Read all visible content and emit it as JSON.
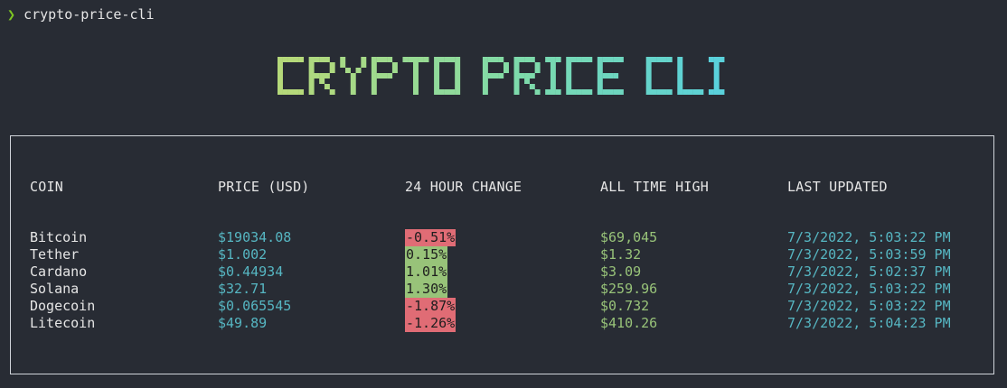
{
  "terminal": {
    "prompt_symbol": "❯",
    "command": "crypto-price-cli"
  },
  "banner": {
    "text": "CRYPTO PRICE CLI",
    "gradient": [
      "#b5d97a",
      "#7fdba8",
      "#56d0e0"
    ]
  },
  "table": {
    "headers": {
      "coin": "COIN",
      "price": "PRICE (USD)",
      "change": "24 HOUR CHANGE",
      "ath": "ALL TIME HIGH",
      "updated": "LAST UPDATED"
    },
    "rows": [
      {
        "coin": "Bitcoin",
        "price": "$19034.08",
        "change": "-0.51%",
        "direction": "neg",
        "ath": "$69,045",
        "updated": "7/3/2022, 5:03:22 PM"
      },
      {
        "coin": "Tether",
        "price": "$1.002",
        "change": "0.15%",
        "direction": "pos",
        "ath": "$1.32",
        "updated": "7/3/2022, 5:03:59 PM"
      },
      {
        "coin": "Cardano",
        "price": "$0.44934",
        "change": "1.01%",
        "direction": "pos",
        "ath": "$3.09",
        "updated": "7/3/2022, 5:02:37 PM"
      },
      {
        "coin": "Solana",
        "price": "$32.71",
        "change": "1.30%",
        "direction": "pos",
        "ath": "$259.96",
        "updated": "7/3/2022, 5:03:22 PM"
      },
      {
        "coin": "Dogecoin",
        "price": "$0.065545",
        "change": "-1.87%",
        "direction": "neg",
        "ath": "$0.732",
        "updated": "7/3/2022, 5:03:22 PM"
      },
      {
        "coin": "Litecoin",
        "price": "$49.89",
        "change": "-1.26%",
        "direction": "neg",
        "ath": "$410.26",
        "updated": "7/3/2022, 5:04:23 PM"
      }
    ]
  },
  "colors": {
    "background": "#282c34",
    "prompt": "#7ec622",
    "price": "#56b6c2",
    "ath": "#98c379",
    "negative": "#e06c75",
    "positive": "#98c379"
  }
}
